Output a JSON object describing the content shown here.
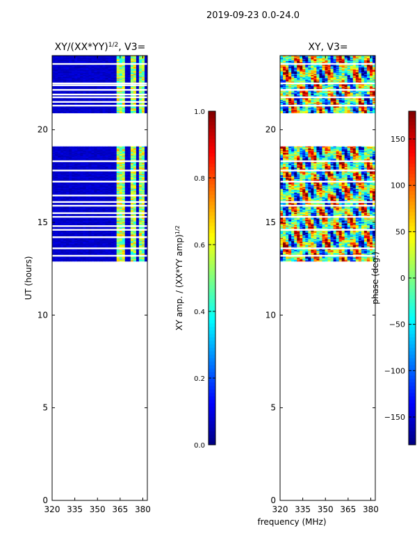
{
  "figure_title": "2019-09-23 0.0-24.0",
  "shared_xlabel": "frequency (MHz)",
  "colors": {
    "jet": [
      "#00007f",
      "#0000ff",
      "#007fff",
      "#00ffff",
      "#7fff7f",
      "#ffff00",
      "#ff7f00",
      "#ff0000",
      "#7f0000"
    ],
    "gap": "#ffffff",
    "axis": "#000000"
  },
  "chart_data": [
    {
      "type": "heatmap",
      "name": "amplitude-ratio",
      "title": "XY/(XX*YY)^{1/2}, V3=",
      "title_main": "XY/(XX*YY)",
      "title_sup": "1/2",
      "title_tail": ", V3=",
      "xlabel": "",
      "ylabel": "UT (hours)",
      "xlim": [
        320,
        383
      ],
      "ylim": [
        0,
        24
      ],
      "xticks": [
        320,
        335,
        350,
        365,
        380
      ],
      "yticks": [
        0,
        5,
        10,
        15,
        20
      ],
      "data_blocks": [
        {
          "ut_start": 20.9,
          "ut_end": 24.0
        },
        {
          "ut_start": 12.9,
          "ut_end": 19.1
        }
      ],
      "gap_rows_ut": [
        23.55,
        22.5,
        22.4,
        22.15,
        21.9,
        21.75,
        21.5,
        21.3,
        18.3,
        17.8,
        17.2,
        16.45,
        16.1,
        15.9,
        15.5,
        15.3,
        14.8,
        14.6,
        14.2,
        13.6,
        13.2
      ],
      "base_value": 0.05,
      "bright_columns_mhz": [
        364,
        366,
        368,
        372,
        375,
        378,
        380
      ],
      "bright_column_value": 0.6,
      "colorbar": {
        "label": "XY amp. / (XX*YY amp)^{1/2}",
        "label_main": "XY amp. / (XX*YY amp)",
        "label_sup": "1/2",
        "range": [
          0.0,
          1.0
        ],
        "ticks": [
          "0.0",
          "0.2",
          "0.4",
          "0.6",
          "0.8",
          "1.0"
        ],
        "tick_values": [
          0.0,
          0.2,
          0.4,
          0.6,
          0.8,
          1.0
        ]
      }
    },
    {
      "type": "heatmap",
      "name": "phase",
      "title": "XY, V3=",
      "xlabel": "frequency (MHz)",
      "ylabel": "",
      "xlim": [
        320,
        383
      ],
      "ylim": [
        0,
        24
      ],
      "xticks": [
        320,
        335,
        350,
        365,
        380
      ],
      "yticks": [
        0,
        5,
        10,
        15,
        20
      ],
      "data_blocks": [
        {
          "ut_start": 20.9,
          "ut_end": 24.0
        },
        {
          "ut_start": 12.9,
          "ut_end": 19.1
        }
      ],
      "gap_rows_ut": [
        23.55,
        22.5,
        22.15,
        21.75,
        21.3,
        18.3,
        17.8,
        17.2,
        16.1,
        15.9,
        15.3,
        14.6,
        13.6,
        13.2
      ],
      "value_range": [
        -180,
        180
      ],
      "colorbar": {
        "label": "phase (deg.)",
        "range": [
          -180,
          180
        ],
        "ticks": [
          "−150",
          "−100",
          "−50",
          "0",
          "50",
          "100",
          "150"
        ],
        "tick_values": [
          -150,
          -100,
          -50,
          0,
          50,
          100,
          150
        ]
      }
    }
  ]
}
